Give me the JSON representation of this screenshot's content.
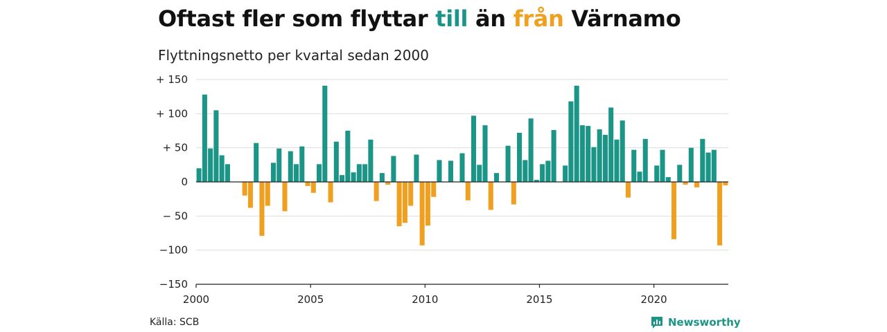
{
  "header": {
    "title_part1": "Oftast fler som flyttar ",
    "title_till": "till",
    "title_part2": " än ",
    "title_fran": "från",
    "title_part3": " Värnamo",
    "subtitle": "Flyttningsnetto per kvartal sedan 2000"
  },
  "footer": {
    "source": "Källa: SCB",
    "brand": "Newsworthy"
  },
  "colors": {
    "positive": "#1a9587",
    "negative": "#f0a020",
    "grid": "#dddddd",
    "brand": "#1a9587"
  },
  "icons": {
    "brand_logo": "newsworthy-chart-bubble-icon"
  },
  "chart_data": {
    "type": "bar",
    "xlabel": "",
    "ylabel": "",
    "ylim": [
      -150,
      150
    ],
    "xlim": [
      2000,
      2023.25
    ],
    "yticks": [
      {
        "value": 150,
        "label": "+ 150"
      },
      {
        "value": 100,
        "label": "+ 100"
      },
      {
        "value": 50,
        "label": "+  50"
      },
      {
        "value": 0,
        "label": "0"
      },
      {
        "value": -50,
        "label": "− 50"
      },
      {
        "value": -100,
        "label": "−100"
      },
      {
        "value": -150,
        "label": "−150"
      }
    ],
    "xticks": [
      {
        "value": 2000,
        "label": "2000"
      },
      {
        "value": 2005,
        "label": "2005"
      },
      {
        "value": 2010,
        "label": "2010"
      },
      {
        "value": 2015,
        "label": "2015"
      },
      {
        "value": 2020,
        "label": "2020"
      }
    ],
    "grid": true,
    "start_year": 2000,
    "periods_per_year": 4,
    "values": [
      20,
      128,
      49,
      105,
      39,
      26,
      0,
      0,
      -20,
      -38,
      57,
      -79,
      -35,
      28,
      49,
      -43,
      45,
      26,
      52,
      -6,
      -16,
      26,
      141,
      -30,
      59,
      10,
      75,
      14,
      26,
      26,
      62,
      -28,
      13,
      -4,
      38,
      -65,
      -60,
      -35,
      40,
      -93,
      -64,
      -22,
      32,
      0,
      31,
      0,
      42,
      -27,
      97,
      25,
      83,
      -41,
      13,
      0,
      53,
      -33,
      72,
      32,
      93,
      3,
      26,
      31,
      76,
      0,
      24,
      118,
      141,
      83,
      82,
      51,
      77,
      69,
      109,
      62,
      90,
      -23,
      47,
      15,
      63,
      0,
      24,
      47,
      7,
      -84,
      25,
      -4,
      50,
      -8,
      63,
      43,
      47,
      -93,
      -5
    ]
  }
}
